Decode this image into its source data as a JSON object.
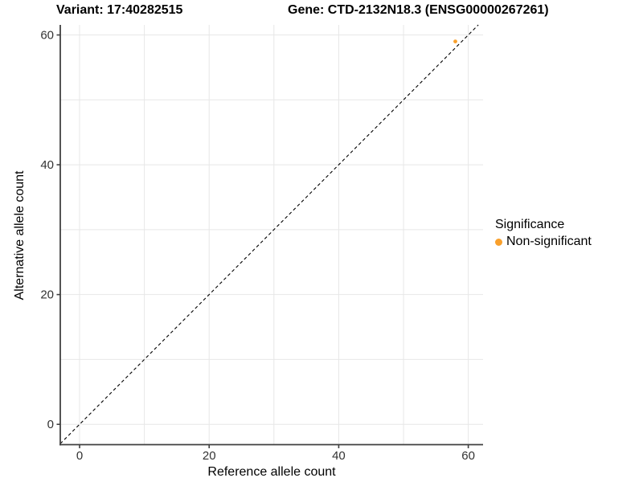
{
  "chart_data": {
    "type": "scatter",
    "title_left": "Variant: 17:40282515",
    "title_right": "Gene: CTD-2132N18.3 (ENSG00000267261)",
    "xlabel": "Reference allele count",
    "ylabel": "Alternative allele count",
    "xlim": [
      -2.98,
      62.28
    ],
    "ylim": [
      -3.13,
      61.55
    ],
    "x_ticks": [
      0,
      20,
      40,
      60
    ],
    "y_ticks": [
      0,
      20,
      40,
      60
    ],
    "grid_step": 10,
    "grid_on": true,
    "points": [
      {
        "x": 58,
        "y": 59,
        "series": "Non-significant"
      }
    ],
    "abline": {
      "slope": 1,
      "intercept": 0,
      "style": "dashed"
    },
    "legend": {
      "title": "Significance",
      "position": "right",
      "items": [
        {
          "label": "Non-significant",
          "color": "#F9A02C"
        }
      ]
    },
    "colors": {
      "grid": "#e7e7e7",
      "axis_line": "#404040",
      "tick_label": "#333333",
      "abline": "#000000",
      "background": "#ffffff"
    }
  }
}
